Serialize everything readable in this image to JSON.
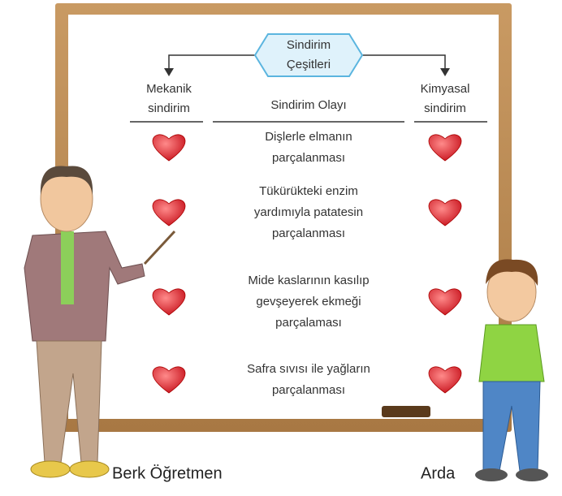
{
  "header": {
    "title": [
      "Sindirim",
      "Çeşitleri"
    ]
  },
  "table": {
    "columns": {
      "left": [
        "Mekanik",
        "sindirim"
      ],
      "middle": "Sindirim Olayı",
      "right": [
        "Kimyasal",
        "sindirim"
      ]
    },
    "rows": [
      {
        "event": [
          "Dişlerle elmanın",
          "parçalanması"
        ]
      },
      {
        "event": [
          "Tükürükteki  enzim",
          "yardımıyla patatesin",
          "parçalanması"
        ]
      },
      {
        "event": [
          "Mide kaslarının kasılıp",
          "gevşeyerek ekmeği",
          "parçalaması"
        ]
      },
      {
        "event": [
          "Safra sıvısı ile yağların",
          "parçalanması"
        ]
      }
    ]
  },
  "characters": {
    "teacher": "Berk Öğretmen",
    "student": "Arda"
  }
}
